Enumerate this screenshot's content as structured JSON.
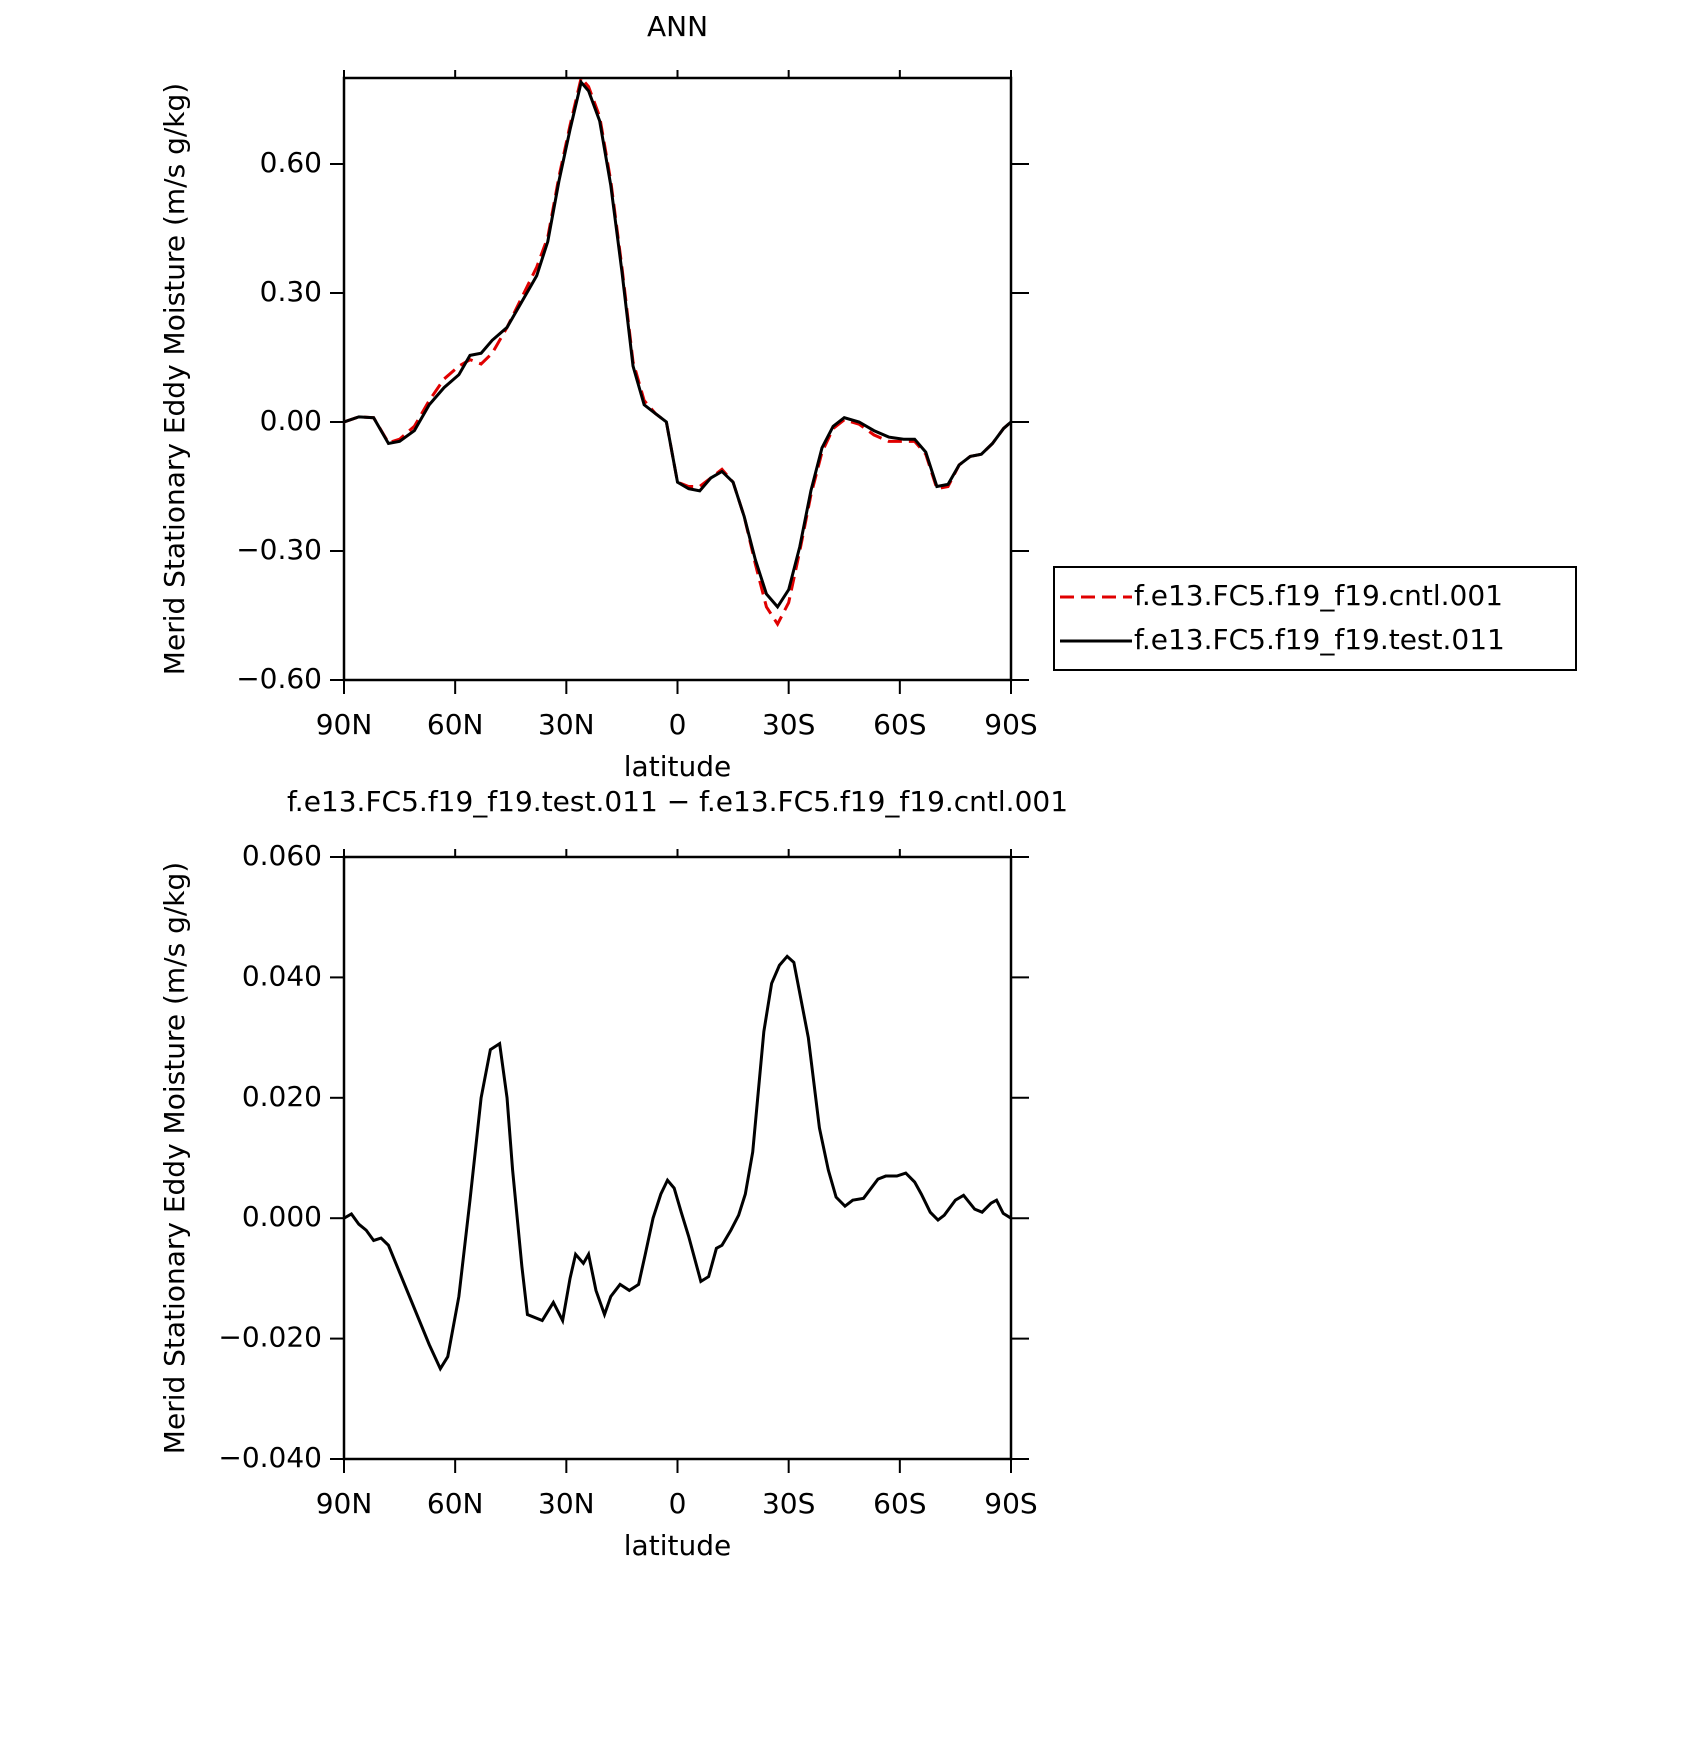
{
  "chart_data": [
    {
      "type": "line",
      "title": "ANN",
      "ylabel": "Merid Stationary Eddy Moisture (m/s g/kg)",
      "xlabel": "latitude",
      "x": [
        90,
        86,
        82,
        78,
        75,
        71,
        67,
        63,
        59,
        56,
        53,
        50,
        46,
        42,
        38,
        35,
        32,
        29,
        26,
        24,
        21,
        18,
        15,
        12,
        9,
        6,
        3,
        0,
        -3,
        -6,
        -9,
        -12,
        -15,
        -18,
        -21,
        -24,
        -27,
        -30,
        -33,
        -36,
        -39,
        -42,
        -45,
        -49,
        -53,
        -57,
        -61,
        -64,
        -67,
        -70,
        -73,
        -76,
        -79,
        -82,
        -85,
        -88,
        -90
      ],
      "series": [
        {
          "name": "f.e13.FC5.f19_f19.cntl.001",
          "color": "#e00000",
          "linestyle": "dashed",
          "values": [
            0,
            0.012,
            0.01,
            -0.048,
            -0.04,
            -0.01,
            0.05,
            0.1,
            0.13,
            0.145,
            0.135,
            0.16,
            0.22,
            0.29,
            0.36,
            0.43,
            0.57,
            0.69,
            0.8,
            0.78,
            0.71,
            0.56,
            0.36,
            0.14,
            0.05,
            0.02,
            0.0,
            -0.14,
            -0.15,
            -0.15,
            -0.13,
            -0.11,
            -0.14,
            -0.22,
            -0.33,
            -0.43,
            -0.47,
            -0.42,
            -0.3,
            -0.17,
            -0.07,
            -0.015,
            0.005,
            -0.005,
            -0.03,
            -0.045,
            -0.045,
            -0.045,
            -0.075,
            -0.155,
            -0.15,
            -0.1,
            -0.08,
            -0.075,
            -0.05,
            -0.015,
            0
          ]
        },
        {
          "name": "f.e13.FC5.f19_f19.test.011",
          "color": "#000000",
          "linestyle": "solid",
          "values": [
            0,
            0.012,
            0.01,
            -0.05,
            -0.045,
            -0.02,
            0.04,
            0.08,
            0.11,
            0.155,
            0.16,
            0.19,
            0.22,
            0.28,
            0.34,
            0.42,
            0.56,
            0.68,
            0.79,
            0.77,
            0.7,
            0.55,
            0.35,
            0.13,
            0.04,
            0.02,
            0.0,
            -0.14,
            -0.155,
            -0.16,
            -0.13,
            -0.115,
            -0.14,
            -0.22,
            -0.32,
            -0.4,
            -0.43,
            -0.39,
            -0.29,
            -0.16,
            -0.06,
            -0.01,
            0.01,
            0.0,
            -0.02,
            -0.035,
            -0.04,
            -0.04,
            -0.07,
            -0.15,
            -0.145,
            -0.1,
            -0.08,
            -0.075,
            -0.05,
            -0.015,
            0
          ]
        }
      ],
      "xlim": [
        90,
        -90
      ],
      "xticks": [
        {
          "value": 90,
          "label": "90N"
        },
        {
          "value": 60,
          "label": "60N"
        },
        {
          "value": 30,
          "label": "30N"
        },
        0,
        {
          "value": -30,
          "label": "30S"
        },
        {
          "value": -60,
          "label": "60S"
        },
        {
          "value": -90,
          "label": "90S"
        }
      ],
      "ylim": [
        -0.6,
        0.8
      ],
      "yticks": [
        {
          "value": -0.6,
          "label": "−0.60"
        },
        {
          "value": -0.3,
          "label": "−0.30"
        },
        {
          "value": 0,
          "label": "0.00"
        },
        {
          "value": 0.3,
          "label": "0.30"
        },
        {
          "value": 0.6,
          "label": "0.60"
        }
      ],
      "legend": "outside-right"
    },
    {
      "type": "line",
      "title": "f.e13.FC5.f19_f19.test.011 − f.e13.FC5.f19_f19.cntl.001",
      "ylabel": "Merid Stationary Eddy Moisture (m/s g/kg)",
      "xlabel": "latitude",
      "x": [
        90,
        88,
        86,
        84,
        82,
        80,
        78,
        75,
        71,
        67,
        64,
        62,
        59,
        56,
        53,
        50.5,
        48,
        46,
        44.5,
        42,
        40.5,
        36.5,
        33.5,
        31,
        29,
        27.5,
        25.4,
        24,
        22,
        19.7,
        18,
        15.5,
        13,
        10.5,
        8.7,
        6.6,
        4.5,
        2.7,
        0.9,
        -1,
        -3,
        -6.3,
        -8.4,
        -10.5,
        -12,
        -14.4,
        -16.5,
        -18.3,
        -20.3,
        -23.3,
        -25.4,
        -27.5,
        -29.6,
        -31.4,
        -35.3,
        -38.3,
        -40.7,
        -42.8,
        -45.2,
        -47.3,
        -50.2,
        -54.1,
        -56.2,
        -59.2,
        -61.6,
        -64,
        -65.8,
        -68.2,
        -70.3,
        -72,
        -75,
        -77.2,
        -80.2,
        -82.2,
        -84.6,
        -86.1,
        -87.9,
        -90
      ],
      "series": [
        {
          "color": "#000000",
          "linestyle": "solid",
          "values": [
            0,
            0.0007,
            -0.001,
            -0.002,
            -0.0037,
            -0.0033,
            -0.0045,
            -0.009,
            -0.015,
            -0.021,
            -0.025,
            -0.023,
            -0.013,
            0.003,
            0.02,
            0.028,
            0.029,
            0.02,
            0.008,
            -0.008,
            -0.016,
            -0.017,
            -0.014,
            -0.017,
            -0.01,
            -0.006,
            -0.0075,
            -0.006,
            -0.012,
            -0.016,
            -0.013,
            -0.011,
            -0.012,
            -0.011,
            -0.006,
            0.0,
            0.004,
            0.0063,
            0.005,
            0.001,
            -0.003,
            -0.0105,
            -0.0097,
            -0.005,
            -0.0045,
            -0.002,
            0.0005,
            0.004,
            0.011,
            0.031,
            0.039,
            0.042,
            0.0435,
            0.0425,
            0.03,
            0.015,
            0.008,
            0.0035,
            0.002,
            0.003,
            0.0033,
            0.0065,
            0.007,
            0.007,
            0.0075,
            0.006,
            0.004,
            0.001,
            -0.0003,
            0.0005,
            0.003,
            0.0038,
            0.0015,
            0.001,
            0.0025,
            0.003,
            0.0008,
            0
          ]
        }
      ],
      "xlim": [
        90,
        -90
      ],
      "xticks": [
        {
          "value": 90,
          "label": "90N"
        },
        {
          "value": 60,
          "label": "60N"
        },
        {
          "value": 30,
          "label": "30N"
        },
        0,
        {
          "value": -30,
          "label": "30S"
        },
        {
          "value": -60,
          "label": "60S"
        },
        {
          "value": -90,
          "label": "90S"
        }
      ],
      "ylim": [
        -0.04,
        0.06
      ],
      "yticks": [
        {
          "value": -0.04,
          "label": "−0.040"
        },
        {
          "value": -0.02,
          "label": "−0.020"
        },
        {
          "value": 0,
          "label": "0.000"
        },
        {
          "value": 0.02,
          "label": "0.020"
        },
        {
          "value": 0.04,
          "label": "0.040"
        },
        {
          "value": 0.06,
          "label": "0.060"
        }
      ]
    }
  ]
}
